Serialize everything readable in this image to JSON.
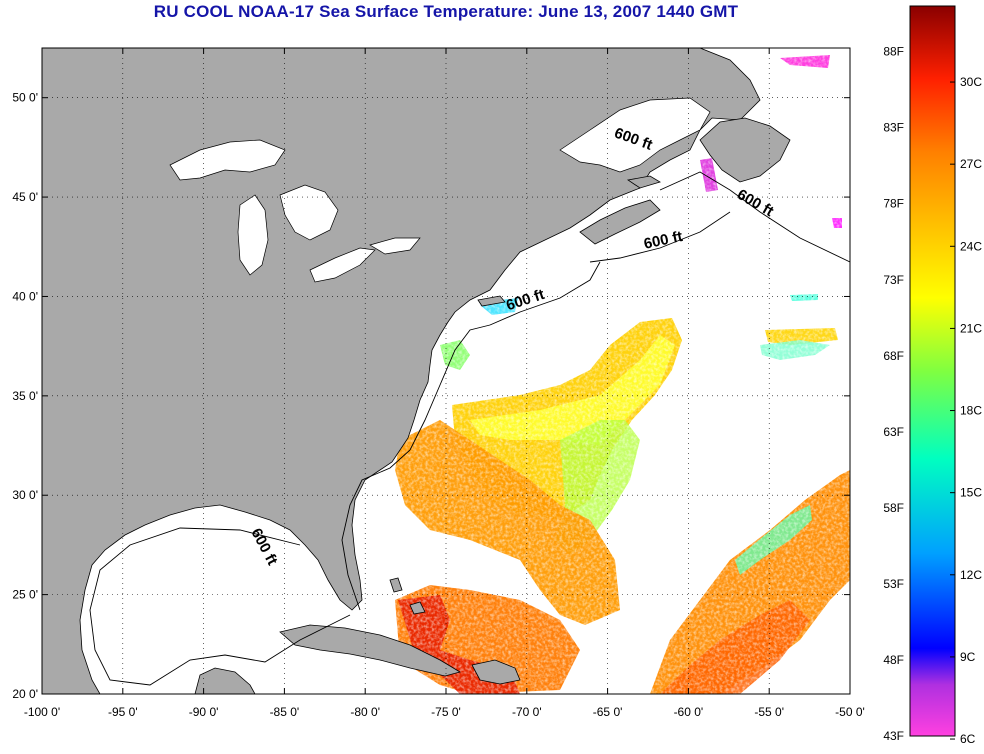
{
  "title": "RU COOL  NOAA-17  Sea Surface Temperature:  June 13, 2007 1440 GMT",
  "map": {
    "lon_range": [
      -100,
      -50
    ],
    "lat_range": [
      20,
      52.5
    ],
    "x_ticks": [
      {
        "v": -100,
        "label": "-100 0'"
      },
      {
        "v": -95,
        "label": "-95 0'"
      },
      {
        "v": -90,
        "label": "-90 0'"
      },
      {
        "v": -85,
        "label": "-85 0'"
      },
      {
        "v": -80,
        "label": "-80 0'"
      },
      {
        "v": -75,
        "label": "-75 0'"
      },
      {
        "v": -70,
        "label": "-70 0'"
      },
      {
        "v": -65,
        "label": "-65 0'"
      },
      {
        "v": -60,
        "label": "-60 0'"
      },
      {
        "v": -55,
        "label": "-55 0'"
      },
      {
        "v": -50,
        "label": "-50 0'"
      }
    ],
    "y_ticks": [
      {
        "v": 20,
        "label": "20 0'"
      },
      {
        "v": 25,
        "label": "25 0'"
      },
      {
        "v": 30,
        "label": "30 0'"
      },
      {
        "v": 35,
        "label": "35 0'"
      },
      {
        "v": 40,
        "label": "40 0'"
      },
      {
        "v": 45,
        "label": "45 0'"
      },
      {
        "v": 50,
        "label": "50 0'"
      }
    ],
    "isobath_labels": [
      {
        "text": "600 ft",
        "lon": -63.5,
        "lat": 47.7
      },
      {
        "text": "600 ft",
        "lon": -56.0,
        "lat": 44.5
      },
      {
        "text": "600 ft",
        "lon": -61.5,
        "lat": 42.6
      },
      {
        "text": "600 ft",
        "lon": -70.0,
        "lat": 39.6
      },
      {
        "text": "600 ft",
        "lon": -86.5,
        "lat": 27.3
      }
    ],
    "land_color": "#a9a9a9",
    "water_color": "#ffffff",
    "grid": true
  },
  "colorbar": {
    "range_f": [
      43,
      91
    ],
    "f_labels": [
      {
        "v": 88,
        "label": "88F"
      },
      {
        "v": 83,
        "label": "83F"
      },
      {
        "v": 78,
        "label": "78F"
      },
      {
        "v": 73,
        "label": "73F"
      },
      {
        "v": 68,
        "label": "68F"
      },
      {
        "v": 63,
        "label": "63F"
      },
      {
        "v": 58,
        "label": "58F"
      },
      {
        "v": 53,
        "label": "53F"
      },
      {
        "v": 48,
        "label": "48F"
      },
      {
        "v": 43,
        "label": "43F"
      }
    ],
    "c_labels": [
      {
        "v": 30,
        "label": "30C"
      },
      {
        "v": 27,
        "label": "27C"
      },
      {
        "v": 24,
        "label": "24C"
      },
      {
        "v": 21,
        "label": "21C"
      },
      {
        "v": 18,
        "label": "18C"
      },
      {
        "v": 15,
        "label": "15C"
      },
      {
        "v": 12,
        "label": "12C"
      },
      {
        "v": 9,
        "label": "9C"
      },
      {
        "v": 6,
        "label": "6C"
      }
    ],
    "stops": [
      "#ff40e0",
      "#9020d0",
      "#0000ff",
      "#00a0ff",
      "#00ffc0",
      "#80ff40",
      "#ffff00",
      "#ffc000",
      "#ff8000",
      "#ff2000",
      "#c00000",
      "#8a0000"
    ]
  }
}
